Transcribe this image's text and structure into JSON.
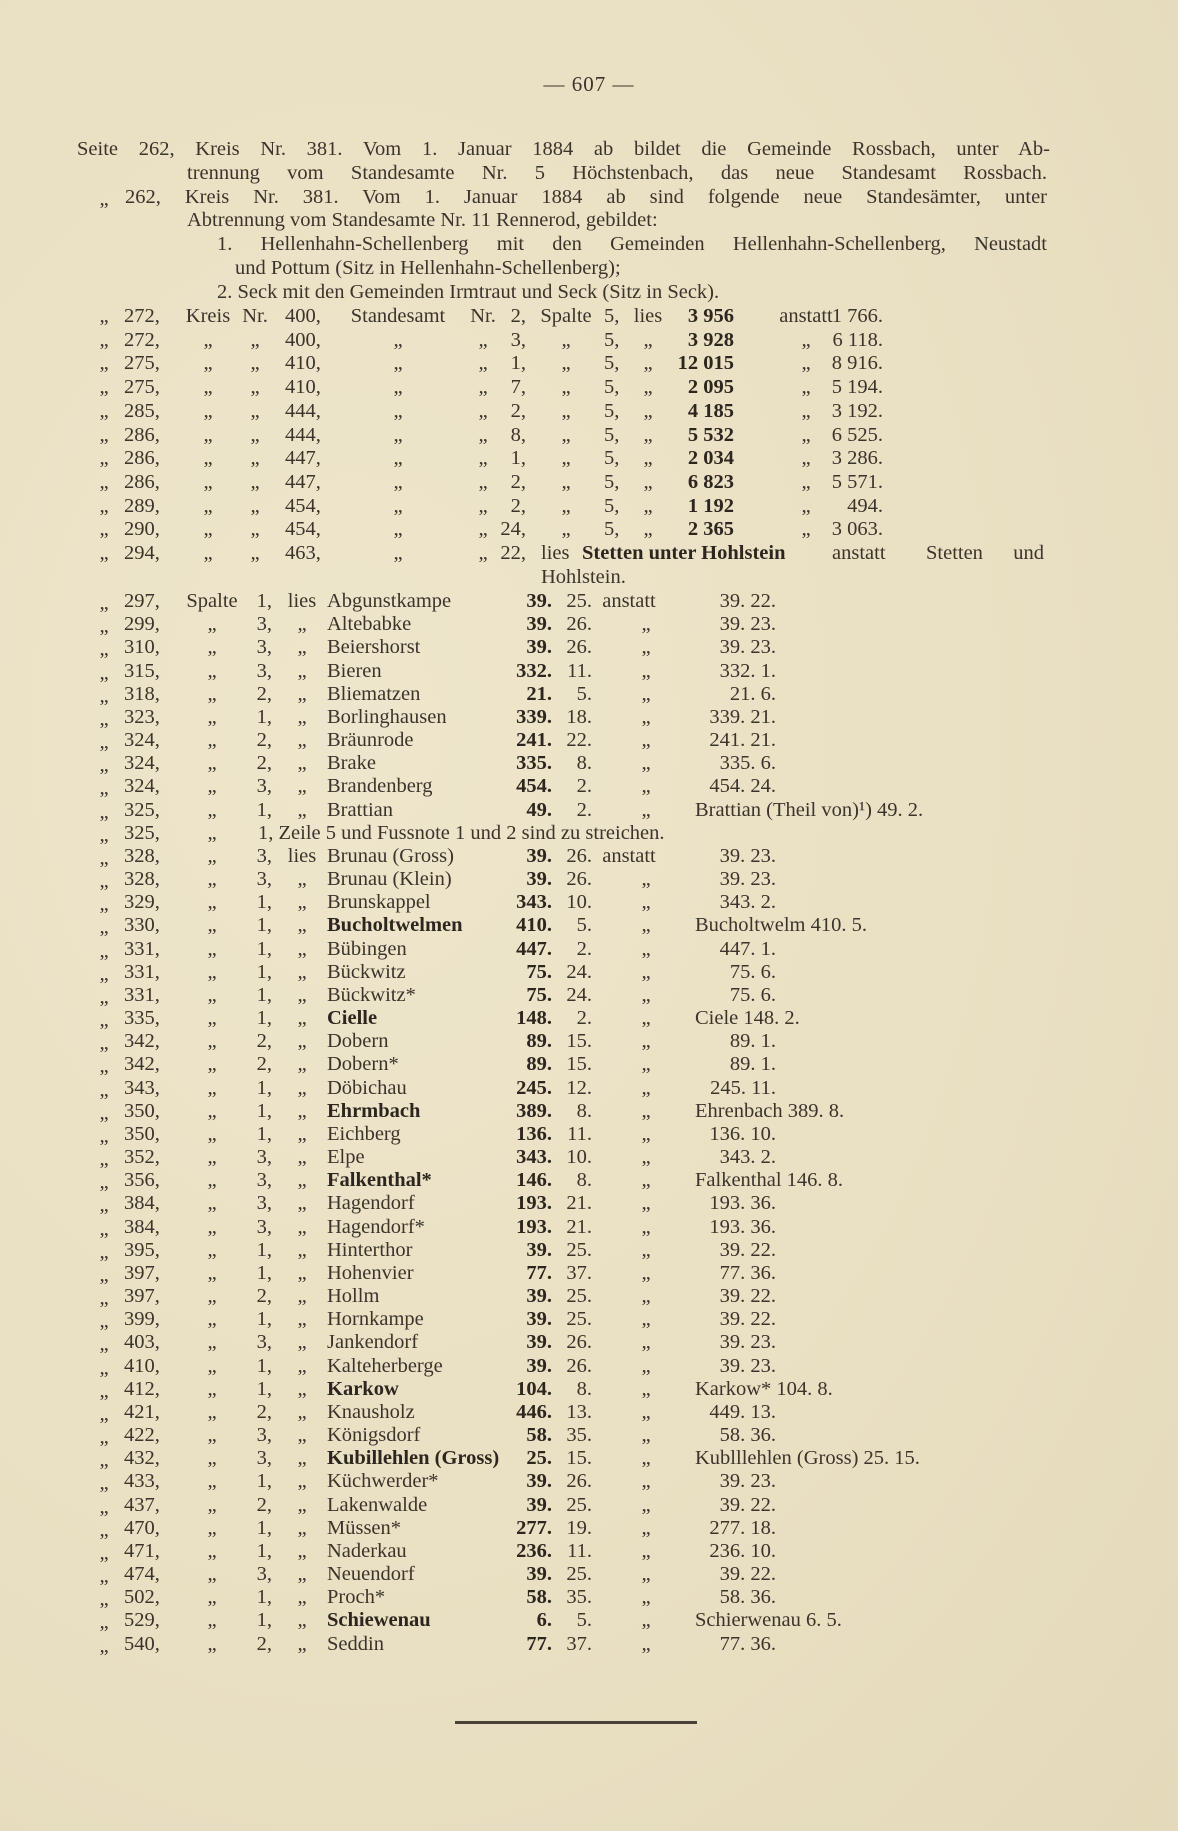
{
  "header": {
    "page_number": "— 607 —"
  },
  "notes": [
    {
      "text": "Seite 262, Kreis Nr. 381.  Vom 1. Januar 1884 ab bildet die Gemeinde Rossbach, unter Ab-"
    },
    {
      "text": "trennung vom Standesamte Nr. 5 Höchstenbach, das neue Standesamt Rossbach."
    },
    {
      "text": "262, Kreis Nr. 381.  Vom 1. Januar 1884 ab sind folgende neue Standesämter, unter",
      "quote": "„"
    },
    {
      "text": "Abtrennung vom Standesamte Nr. 11 Rennerod, gebildet:"
    },
    {
      "text": "1. Hellenhahn-Schellenberg mit den Gemeinden Hellenhahn-Schellenberg, Neustadt"
    },
    {
      "text": "und Pottum (Sitz in Hellenhahn-Schellenberg);"
    },
    {
      "text": "2. Seck mit den Gemeinden Irmtraut und Seck (Sitz in Seck)."
    }
  ],
  "standesamt_corrections": [
    {
      "quote": "„",
      "page": "272,",
      "kreis": "Kreis",
      "nr": "Nr.",
      "num": "400,",
      "standesamt": "Standesamt",
      "nr2": "Nr.",
      "num2": "2,",
      "spalte": "Spalte",
      "col": "5,",
      "lies": "lies",
      "new": "3 956",
      "anstatt": "anstatt",
      "old": "1 766."
    },
    {
      "quote": "„",
      "page": "272,",
      "kreis": "„",
      "nr": "„",
      "num": "400,",
      "standesamt": "„",
      "nr2": "„",
      "num2": "3,",
      "spalte": "„",
      "col": "5,",
      "lies": "„",
      "new": "3 928",
      "anstatt": "„",
      "old": "6 118."
    },
    {
      "quote": "„",
      "page": "275,",
      "kreis": "„",
      "nr": "„",
      "num": "410,",
      "standesamt": "„",
      "nr2": "„",
      "num2": "1,",
      "spalte": "„",
      "col": "5,",
      "lies": "„",
      "new": "12 015",
      "anstatt": "„",
      "old": "8 916."
    },
    {
      "quote": "„",
      "page": "275,",
      "kreis": "„",
      "nr": "„",
      "num": "410,",
      "standesamt": "„",
      "nr2": "„",
      "num2": "7,",
      "spalte": "„",
      "col": "5,",
      "lies": "„",
      "new": "2 095",
      "anstatt": "„",
      "old": "5 194."
    },
    {
      "quote": "„",
      "page": "285,",
      "kreis": "„",
      "nr": "„",
      "num": "444,",
      "standesamt": "„",
      "nr2": "„",
      "num2": "2,",
      "spalte": "„",
      "col": "5,",
      "lies": "„",
      "new": "4 185",
      "anstatt": "„",
      "old": "3 192."
    },
    {
      "quote": "„",
      "page": "286,",
      "kreis": "„",
      "nr": "„",
      "num": "444,",
      "standesamt": "„",
      "nr2": "„",
      "num2": "8,",
      "spalte": "„",
      "col": "5,",
      "lies": "„",
      "new": "5 532",
      "anstatt": "„",
      "old": "6 525."
    },
    {
      "quote": "„",
      "page": "286,",
      "kreis": "„",
      "nr": "„",
      "num": "447,",
      "standesamt": "„",
      "nr2": "„",
      "num2": "1,",
      "spalte": "„",
      "col": "5,",
      "lies": "„",
      "new": "2 034",
      "anstatt": "„",
      "old": "3 286."
    },
    {
      "quote": "„",
      "page": "286,",
      "kreis": "„",
      "nr": "„",
      "num": "447,",
      "standesamt": "„",
      "nr2": "„",
      "num2": "2,",
      "spalte": "„",
      "col": "5,",
      "lies": "„",
      "new": "6 823",
      "anstatt": "„",
      "old": "5 571."
    },
    {
      "quote": "„",
      "page": "289,",
      "kreis": "„",
      "nr": "„",
      "num": "454,",
      "standesamt": "„",
      "nr2": "„",
      "num2": "2,",
      "spalte": "„",
      "col": "5,",
      "lies": "„",
      "new": "1 192",
      "anstatt": "„",
      "old": "494."
    },
    {
      "quote": "„",
      "page": "290,",
      "kreis": "„",
      "nr": "„",
      "num": "454,",
      "standesamt": "„",
      "nr2": "„",
      "num2": "24,",
      "spalte": "„",
      "col": "5,",
      "lies": "„",
      "new": "2 365",
      "anstatt": "„",
      "old": "3 063."
    }
  ],
  "name_correction": {
    "quote": "„",
    "page": "294,",
    "kreis": "„",
    "nr": "„",
    "num": "463,",
    "standesamt": "„",
    "nr2": "„",
    "num2": "22,",
    "lies": "lies",
    "new_name": "Stetten unter Hohlstein",
    "anstatt": "anstatt",
    "old_name_line1": "Stetten und",
    "old_name_line2": "Hohlstein."
  },
  "place_corrections": [
    {
      "quote": "„",
      "page": "297,",
      "spalte": "Spalte",
      "col": "1,",
      "lies": "lies",
      "name": "Abgunstkampe",
      "new1": "39.",
      "new2": "25.",
      "anstatt": "anstatt",
      "old": "39. 22."
    },
    {
      "quote": "„",
      "page": "299,",
      "spalte": "„",
      "col": "3,",
      "lies": "„",
      "name": "Altebabke",
      "new1": "39.",
      "new2": "26.",
      "anstatt": "„",
      "old": "39. 23."
    },
    {
      "quote": "„",
      "page": "310,",
      "spalte": "„",
      "col": "3,",
      "lies": "„",
      "name": "Beiershorst",
      "new1": "39.",
      "new2": "26.",
      "anstatt": "„",
      "old": "39. 23."
    },
    {
      "quote": "„",
      "page": "315,",
      "spalte": "„",
      "col": "3,",
      "lies": "„",
      "name": "Bieren",
      "new1": "332.",
      "new2": "11.",
      "anstatt": "„",
      "old": "332. 1."
    },
    {
      "quote": "„",
      "page": "318,",
      "spalte": "„",
      "col": "2,",
      "lies": "„",
      "name": "Bliematzen",
      "new1": "21.",
      "new2": "5.",
      "anstatt": "„",
      "old": "21. 6."
    },
    {
      "quote": "„",
      "page": "323,",
      "spalte": "„",
      "col": "1,",
      "lies": "„",
      "name": "Borlinghausen",
      "new1": "339.",
      "new2": "18.",
      "anstatt": "„",
      "old": "339. 21."
    },
    {
      "quote": "„",
      "page": "324,",
      "spalte": "„",
      "col": "2,",
      "lies": "„",
      "name": "Bräunrode",
      "new1": "241.",
      "new2": "22.",
      "anstatt": "„",
      "old": "241. 21."
    },
    {
      "quote": "„",
      "page": "324,",
      "spalte": "„",
      "col": "2,",
      "lies": "„",
      "name": "Brake",
      "new1": "335.",
      "new2": "8.",
      "anstatt": "„",
      "old": "335. 6."
    },
    {
      "quote": "„",
      "page": "324,",
      "spalte": "„",
      "col": "3,",
      "lies": "„",
      "name": "Brandenberg",
      "new1": "454.",
      "new2": "2.",
      "anstatt": "„",
      "old": "454. 24."
    },
    {
      "quote": "„",
      "page": "325,",
      "spalte": "„",
      "col": "1,",
      "lies": "„",
      "name": "Brattian",
      "new1": "49.",
      "new2": "2.",
      "anstatt": "„",
      "old": "Brattian (Theil von)¹) 49. 2."
    },
    {
      "quote": "„",
      "page": "325,",
      "spalte": "„",
      "note": "1, Zeile 5 und Fussnote 1 und 2 sind zu streichen."
    },
    {
      "quote": "„",
      "page": "328,",
      "spalte": "„",
      "col": "3,",
      "lies": "lies",
      "name": "Brunau (Gross)",
      "new1": "39.",
      "new2": "26.",
      "anstatt": "anstatt",
      "old": "39. 23."
    },
    {
      "quote": "„",
      "page": "328,",
      "spalte": "„",
      "col": "3,",
      "lies": "„",
      "name": "Brunau (Klein)",
      "new1": "39.",
      "new2": "26.",
      "anstatt": "„",
      "old": "39. 23."
    },
    {
      "quote": "„",
      "page": "329,",
      "spalte": "„",
      "col": "1,",
      "lies": "„",
      "name": "Brunskappel",
      "new1": "343.",
      "new2": "10.",
      "anstatt": "„",
      "old": "343. 2."
    },
    {
      "quote": "„",
      "page": "330,",
      "spalte": "„",
      "col": "1,",
      "lies": "„",
      "name": "Bucholtwelmen",
      "emphasis": true,
      "new1": "410.",
      "new2": "5.",
      "anstatt": "„",
      "old": "Bucholtwelm 410. 5."
    },
    {
      "quote": "„",
      "page": "331,",
      "spalte": "„",
      "col": "1,",
      "lies": "„",
      "name": "Bübingen",
      "new1": "447.",
      "new2": "2.",
      "anstatt": "„",
      "old": "447. 1."
    },
    {
      "quote": "„",
      "page": "331,",
      "spalte": "„",
      "col": "1,",
      "lies": "„",
      "name": "Bückwitz",
      "new1": "75.",
      "new2": "24.",
      "anstatt": "„",
      "old": "75. 6."
    },
    {
      "quote": "„",
      "page": "331,",
      "spalte": "„",
      "col": "1,",
      "lies": "„",
      "name": "Bückwitz*",
      "new1": "75.",
      "new2": "24.",
      "anstatt": "„",
      "old": "75. 6."
    },
    {
      "quote": "„",
      "page": "335,",
      "spalte": "„",
      "col": "1,",
      "lies": "„",
      "name": "Cielle",
      "emphasis": true,
      "new1": "148.",
      "new2": "2.",
      "anstatt": "„",
      "old": "Ciele 148. 2."
    },
    {
      "quote": "„",
      "page": "342,",
      "spalte": "„",
      "col": "2,",
      "lies": "„",
      "name": "Dobern",
      "new1": "89.",
      "new2": "15.",
      "anstatt": "„",
      "old": "89. 1."
    },
    {
      "quote": "„",
      "page": "342,",
      "spalte": "„",
      "col": "2,",
      "lies": "„",
      "name": "Dobern*",
      "new1": "89.",
      "new2": "15.",
      "anstatt": "„",
      "old": "89. 1."
    },
    {
      "quote": "„",
      "page": "343,",
      "spalte": "„",
      "col": "1,",
      "lies": "„",
      "name": "Döbichau",
      "new1": "245.",
      "new2": "12.",
      "anstatt": "„",
      "old": "245. 11."
    },
    {
      "quote": "„",
      "page": "350,",
      "spalte": "„",
      "col": "1,",
      "lies": "„",
      "name": "Ehrmbach",
      "emphasis": true,
      "new1": "389.",
      "new2": "8.",
      "anstatt": "„",
      "old": "Ehrenbach 389. 8."
    },
    {
      "quote": "„",
      "page": "350,",
      "spalte": "„",
      "col": "1,",
      "lies": "„",
      "name": "Eichberg",
      "new1": "136.",
      "new2": "11.",
      "anstatt": "„",
      "old": "136. 10."
    },
    {
      "quote": "„",
      "page": "352,",
      "spalte": "„",
      "col": "3,",
      "lies": "„",
      "name": "Elpe",
      "new1": "343.",
      "new2": "10.",
      "anstatt": "„",
      "old": "343. 2."
    },
    {
      "quote": "„",
      "page": "356,",
      "spalte": "„",
      "col": "3,",
      "lies": "„",
      "name": "Falkenthal*",
      "emphasis": true,
      "new1": "146.",
      "new2": "8.",
      "anstatt": "„",
      "old": "Falkenthal 146. 8."
    },
    {
      "quote": "„",
      "page": "384,",
      "spalte": "„",
      "col": "3,",
      "lies": "„",
      "name": "Hagendorf",
      "new1": "193.",
      "new2": "21.",
      "anstatt": "„",
      "old": "193. 36."
    },
    {
      "quote": "„",
      "page": "384,",
      "spalte": "„",
      "col": "3,",
      "lies": "„",
      "name": "Hagendorf*",
      "new1": "193.",
      "new2": "21.",
      "anstatt": "„",
      "old": "193. 36."
    },
    {
      "quote": "„",
      "page": "395,",
      "spalte": "„",
      "col": "1,",
      "lies": "„",
      "name": "Hinterthor",
      "new1": "39.",
      "new2": "25.",
      "anstatt": "„",
      "old": "39. 22."
    },
    {
      "quote": "„",
      "page": "397,",
      "spalte": "„",
      "col": "1,",
      "lies": "„",
      "name": "Hohenvier",
      "new1": "77.",
      "new2": "37.",
      "anstatt": "„",
      "old": "77. 36."
    },
    {
      "quote": "„",
      "page": "397,",
      "spalte": "„",
      "col": "2,",
      "lies": "„",
      "name": "Hollm",
      "new1": "39.",
      "new2": "25.",
      "anstatt": "„",
      "old": "39. 22."
    },
    {
      "quote": "„",
      "page": "399,",
      "spalte": "„",
      "col": "1,",
      "lies": "„",
      "name": "Hornkampe",
      "new1": "39.",
      "new2": "25.",
      "anstatt": "„",
      "old": "39. 22."
    },
    {
      "quote": "„",
      "page": "403,",
      "spalte": "„",
      "col": "3,",
      "lies": "„",
      "name": "Jankendorf",
      "new1": "39.",
      "new2": "26.",
      "anstatt": "„",
      "old": "39. 23."
    },
    {
      "quote": "„",
      "page": "410,",
      "spalte": "„",
      "col": "1,",
      "lies": "„",
      "name": "Kalteherberge",
      "new1": "39.",
      "new2": "26.",
      "anstatt": "„",
      "old": "39. 23."
    },
    {
      "quote": "„",
      "page": "412,",
      "spalte": "„",
      "col": "1,",
      "lies": "„",
      "name": "Karkow",
      "emphasis": true,
      "new1": "104.",
      "new2": "8.",
      "anstatt": "„",
      "old": "Karkow* 104. 8."
    },
    {
      "quote": "„",
      "page": "421,",
      "spalte": "„",
      "col": "2,",
      "lies": "„",
      "name": "Knausholz",
      "new1": "446.",
      "new2": "13.",
      "anstatt": "„",
      "old": "449. 13."
    },
    {
      "quote": "„",
      "page": "422,",
      "spalte": "„",
      "col": "3,",
      "lies": "„",
      "name": "Königsdorf",
      "new1": "58.",
      "new2": "35.",
      "anstatt": "„",
      "old": "58. 36."
    },
    {
      "quote": "„",
      "page": "432,",
      "spalte": "„",
      "col": "3,",
      "lies": "„",
      "name": "Kubillehlen (Gross)",
      "emphasis": true,
      "new1": "25.",
      "new2": "15.",
      "anstatt": "„",
      "old": "Kublllehlen (Gross) 25. 15."
    },
    {
      "quote": "„",
      "page": "433,",
      "spalte": "„",
      "col": "1,",
      "lies": "„",
      "name": "Küchwerder*",
      "new1": "39.",
      "new2": "26.",
      "anstatt": "„",
      "old": "39. 23."
    },
    {
      "quote": "„",
      "page": "437,",
      "spalte": "„",
      "col": "2,",
      "lies": "„",
      "name": "Lakenwalde",
      "new1": "39.",
      "new2": "25.",
      "anstatt": "„",
      "old": "39. 22."
    },
    {
      "quote": "„",
      "page": "470,",
      "spalte": "„",
      "col": "1,",
      "lies": "„",
      "name": "Müssen*",
      "new1": "277.",
      "new2": "19.",
      "anstatt": "„",
      "old": "277. 18."
    },
    {
      "quote": "„",
      "page": "471,",
      "spalte": "„",
      "col": "1,",
      "lies": "„",
      "name": "Naderkau",
      "new1": "236.",
      "new2": "11.",
      "anstatt": "„",
      "old": "236. 10."
    },
    {
      "quote": "„",
      "page": "474,",
      "spalte": "„",
      "col": "3,",
      "lies": "„",
      "name": "Neuendorf",
      "new1": "39.",
      "new2": "25.",
      "anstatt": "„",
      "old": "39. 22."
    },
    {
      "quote": "„",
      "page": "502,",
      "spalte": "„",
      "col": "1,",
      "lies": "„",
      "name": "Proch*",
      "new1": "58.",
      "new2": "35.",
      "anstatt": "„",
      "old": "58. 36."
    },
    {
      "quote": "„",
      "page": "529,",
      "spalte": "„",
      "col": "1,",
      "lies": "„",
      "name": "Schiewenau",
      "emphasis": true,
      "new1": "6.",
      "new2": "5.",
      "anstatt": "„",
      "old": "Schierwenau 6. 5."
    },
    {
      "quote": "„",
      "page": "540,",
      "spalte": "„",
      "col": "2,",
      "lies": "„",
      "name": "Seddin",
      "new1": "77.",
      "new2": "37.",
      "anstatt": "„",
      "old": "77. 36."
    }
  ]
}
